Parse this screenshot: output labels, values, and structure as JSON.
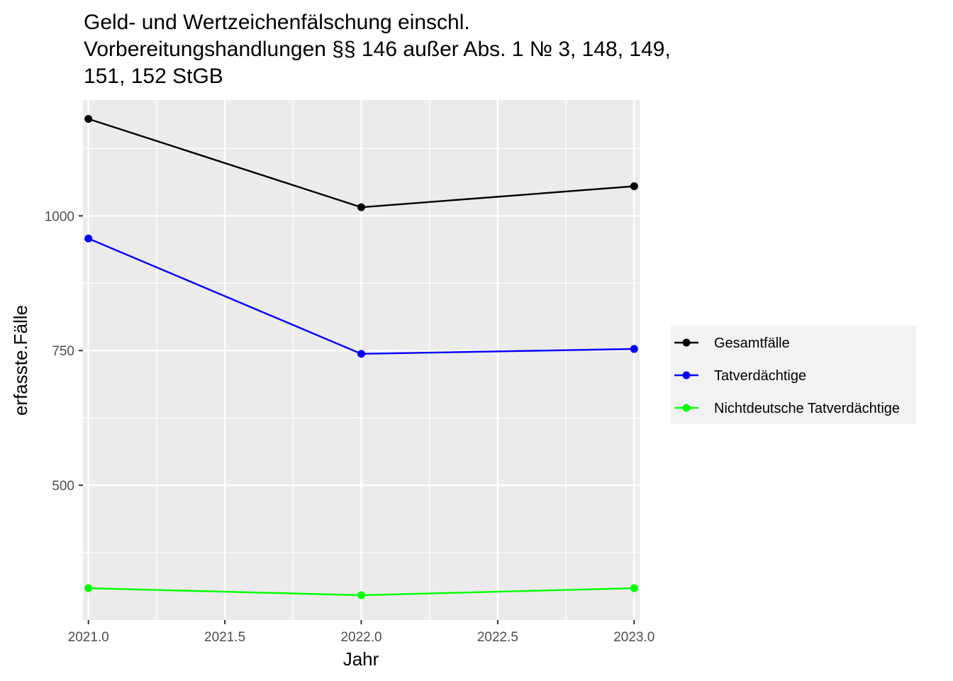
{
  "chart_data": {
    "type": "line",
    "title": [
      "Geld- und Wertzeichenfälschung einschl.",
      "Vorbereitungshandlungen §§ 146 außer Abs. 1 № 3, 148, 149,",
      "151, 152 StGB"
    ],
    "xlabel": "Jahr",
    "ylabel": "erfasste.Fälle",
    "x": [
      2021,
      2022,
      2023
    ],
    "xlim": [
      2020.98,
      2023.02
    ],
    "ylim": [
      250,
      1215
    ],
    "x_ticks": [
      2021.0,
      2021.5,
      2022.0,
      2022.5,
      2023.0
    ],
    "x_tick_labels": [
      "2021.0",
      "2021.5",
      "2022.0",
      "2022.5",
      "2023.0"
    ],
    "y_ticks": [
      500,
      750,
      1000
    ],
    "y_tick_labels": [
      "500",
      "750",
      "1000"
    ],
    "y_minor_ticks": [
      375,
      625,
      875,
      1125
    ],
    "x_minor_ticks": [
      2021.25,
      2021.75,
      2022.25,
      2022.75
    ],
    "grid": true,
    "panel_color": "#ebebeb",
    "legend_position": "right",
    "series": [
      {
        "name": "Gesamtfälle",
        "color": "#000000",
        "values": [
          1180,
          1016,
          1055
        ]
      },
      {
        "name": "Tatverdächtige",
        "color": "#0000ff",
        "values": [
          958,
          744,
          753
        ]
      },
      {
        "name": "Nichtdeutsche Tatverdächtige",
        "color": "#00ff00",
        "values": [
          309,
          296,
          309
        ]
      }
    ]
  }
}
